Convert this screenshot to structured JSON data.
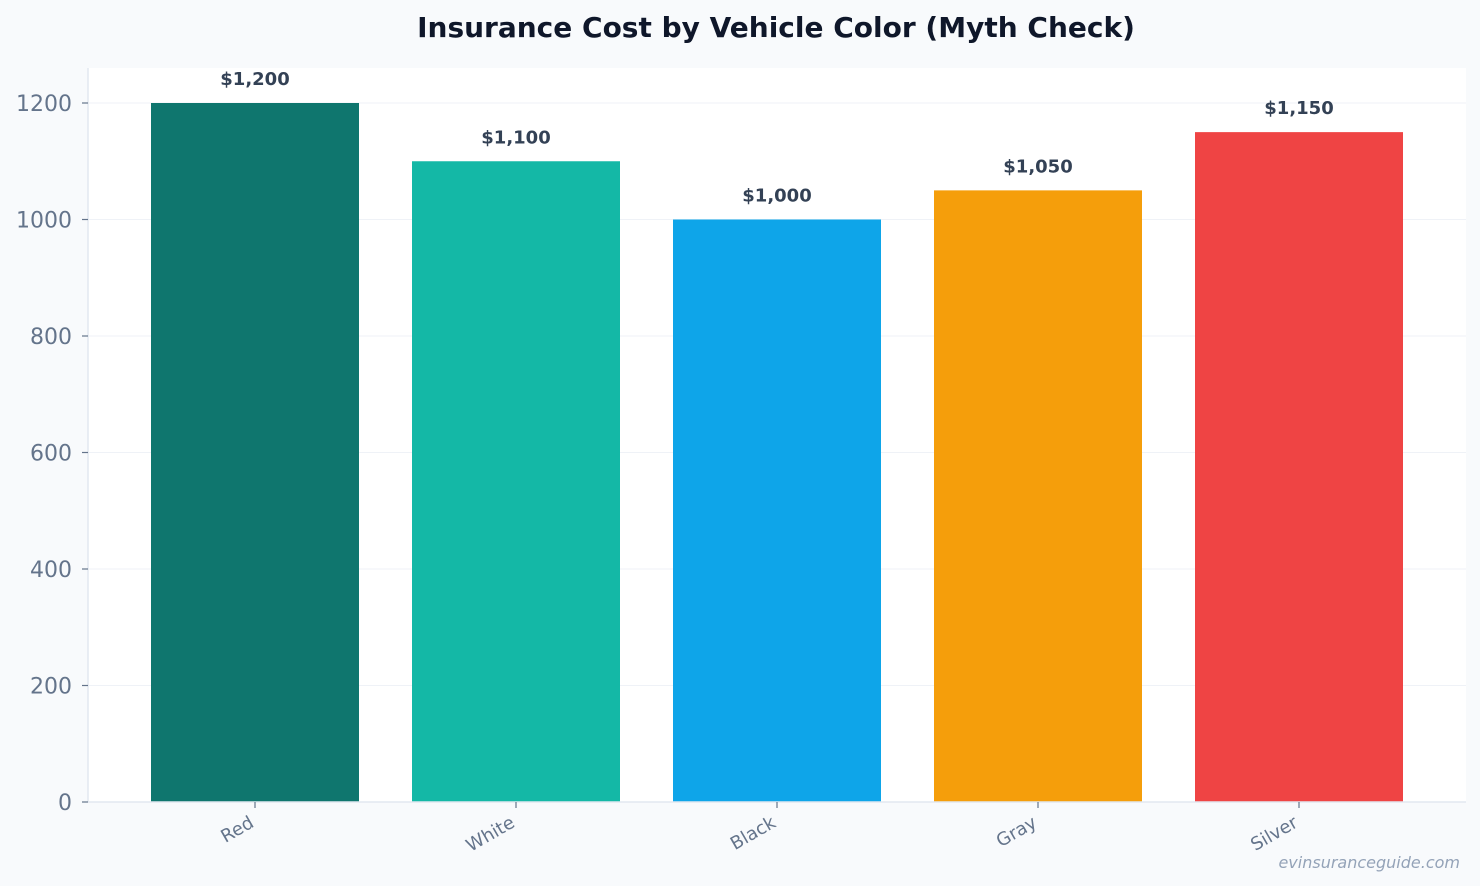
{
  "chart_data": {
    "type": "bar",
    "title": "Insurance Cost by Vehicle Color (Myth Check)",
    "xlabel": "",
    "ylabel": "",
    "categories": [
      "Red",
      "White",
      "Black",
      "Gray",
      "Silver"
    ],
    "values": [
      1200,
      1100,
      1000,
      1050,
      1150
    ],
    "data_labels": [
      "$1,200",
      "$1,100",
      "$1,000",
      "$1,050",
      "$1,150"
    ],
    "colors": [
      "#0f766e",
      "#14b8a6",
      "#0ea5e9",
      "#f59e0b",
      "#ef4444"
    ],
    "ylim": [
      0,
      1260
    ],
    "yticks": [
      0,
      200,
      400,
      600,
      800,
      1000,
      1200
    ],
    "ytick_labels": [
      "0",
      "200",
      "400",
      "600",
      "800",
      "1000",
      "1200"
    ],
    "grid": true,
    "legend": "none"
  },
  "watermark": "evinsuranceguide.com"
}
